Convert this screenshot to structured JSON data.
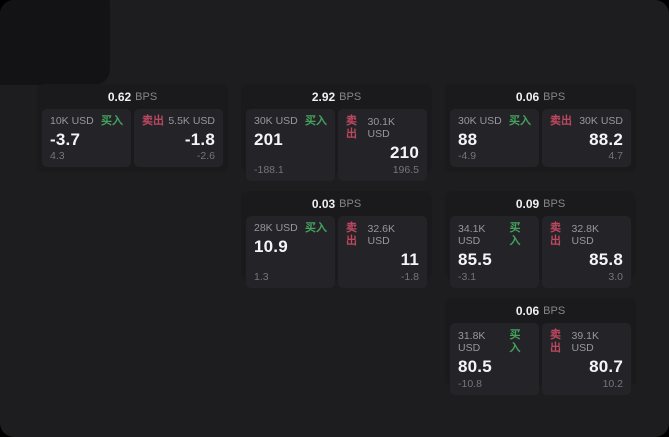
{
  "colors": {
    "panel": "#1d1d1f",
    "shade": "#131315",
    "card": "#1a1a1c",
    "tile": "#242428",
    "buy": "#44a25e",
    "sell": "#bd4860"
  },
  "labels": {
    "bps_unit": "BPS",
    "buy": "买入",
    "sell": "卖出"
  },
  "cards": [
    {
      "bps": "0.62",
      "buy": {
        "size": "10K USD",
        "price": "-3.7",
        "delta": "4.3"
      },
      "sell": {
        "size": "5.5K USD",
        "price": "-1.8",
        "delta": "-2.6"
      }
    },
    {
      "bps": "2.92",
      "buy": {
        "size": "30K USD",
        "price": "201",
        "delta": "-188.1"
      },
      "sell": {
        "size": "30.1K USD",
        "price": "210",
        "delta": "196.5"
      }
    },
    {
      "bps": "0.06",
      "buy": {
        "size": "30K USD",
        "price": "88",
        "delta": "-4.9"
      },
      "sell": {
        "size": "30K USD",
        "price": "88.2",
        "delta": "4.7"
      }
    },
    {
      "bps": "0.03",
      "buy": {
        "size": "28K USD",
        "price": "10.9",
        "delta": "1.3"
      },
      "sell": {
        "size": "32.6K USD",
        "price": "11",
        "delta": "-1.8"
      }
    },
    {
      "bps": "0.09",
      "buy": {
        "size": "34.1K USD",
        "price": "85.5",
        "delta": "-3.1"
      },
      "sell": {
        "size": "32.8K USD",
        "price": "85.8",
        "delta": "3.0"
      }
    },
    {
      "bps": "0.06",
      "buy": {
        "size": "31.8K USD",
        "price": "80.5",
        "delta": "-10.8"
      },
      "sell": {
        "size": "39.1K USD",
        "price": "80.7",
        "delta": "10.2"
      }
    }
  ]
}
